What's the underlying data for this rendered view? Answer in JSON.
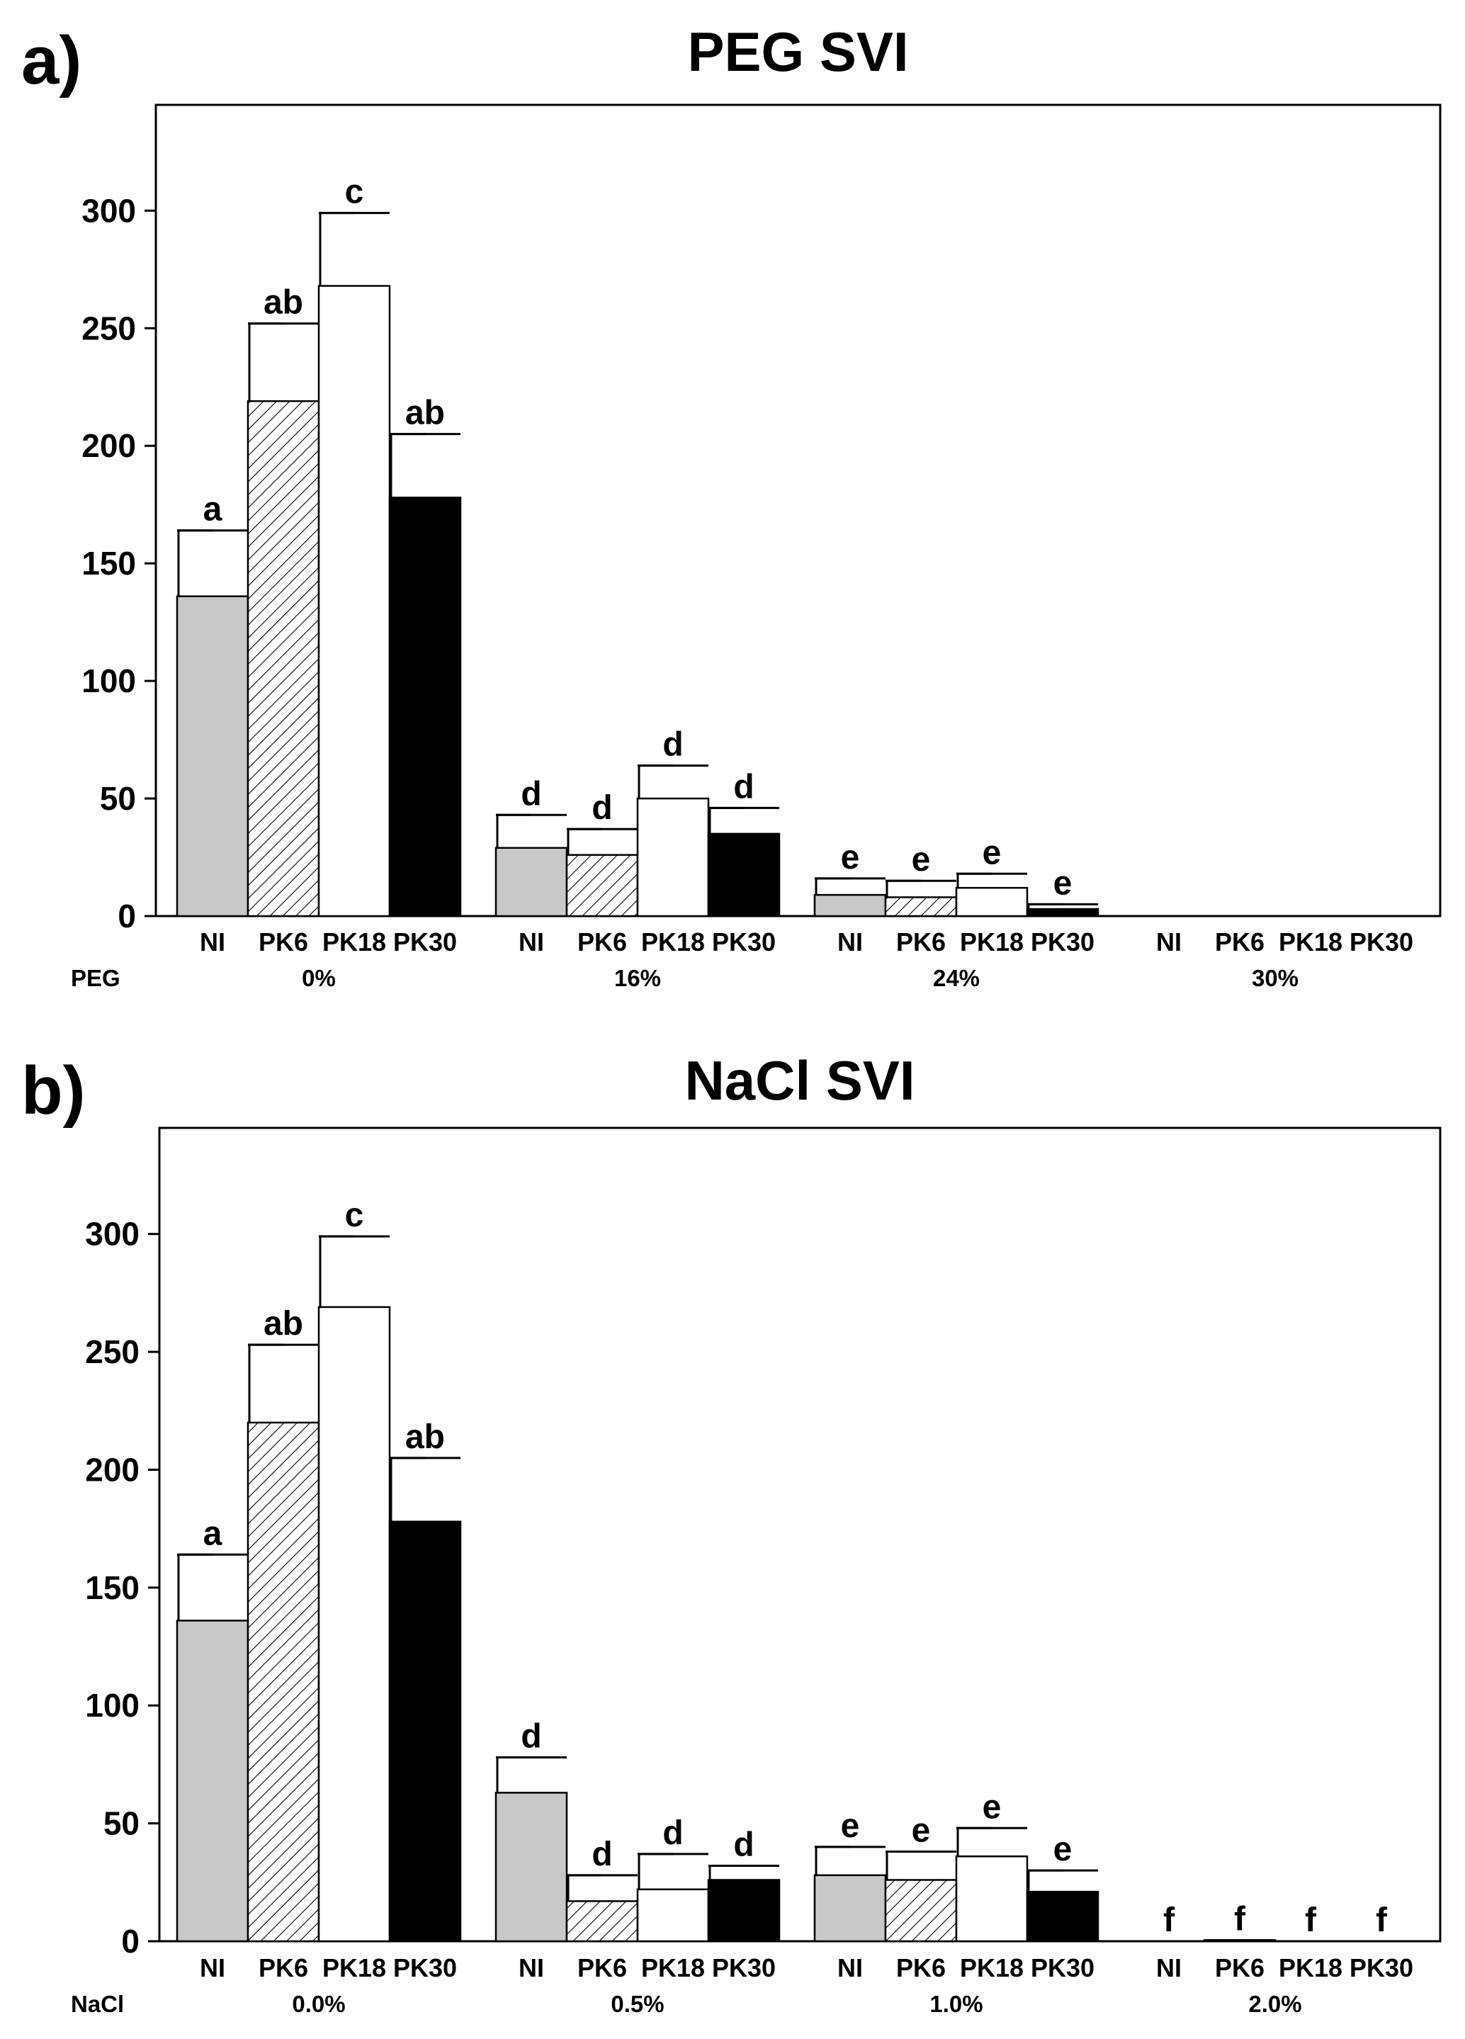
{
  "colors": {
    "NI": "#c8c8c8",
    "PK6": "#ffffff",
    "PK18": "#ffffff",
    "PK30": "#000000",
    "axis": "#000000",
    "background": "#ffffff"
  },
  "series_styles": {
    "NI": "solid",
    "PK6": "hatched",
    "PK18": "open",
    "PK30": "solid"
  },
  "chart_data": [
    {
      "type": "bar",
      "panel_label": "a)",
      "title": "PEG SVI",
      "factor_label": "PEG",
      "ylim": [
        0,
        345
      ],
      "yticks": [
        0,
        50,
        100,
        150,
        200,
        250,
        300
      ],
      "ytick_labels": [
        "0",
        "50",
        "100",
        "150",
        "200",
        "250",
        "300"
      ],
      "series_names": [
        "NI",
        "PK6",
        "PK18",
        "PK30"
      ],
      "groups": [
        {
          "label": "0%",
          "values": [
            136,
            219,
            268,
            178
          ],
          "errors": [
            28,
            33,
            31,
            27
          ],
          "letters": [
            "a",
            "ab",
            "c",
            "ab"
          ]
        },
        {
          "label": "16%",
          "values": [
            29,
            26,
            50,
            35
          ],
          "errors": [
            14,
            11,
            14,
            11
          ],
          "letters": [
            "d",
            "d",
            "d",
            "d"
          ]
        },
        {
          "label": "24%",
          "values": [
            9,
            8,
            12,
            3
          ],
          "errors": [
            7,
            7,
            6,
            2
          ],
          "letters": [
            "e",
            "e",
            "e",
            "e"
          ]
        },
        {
          "label": "30%",
          "values": [
            0,
            0,
            0,
            0
          ],
          "errors": [
            0,
            0,
            0,
            0
          ],
          "letters": [
            "",
            "",
            "",
            ""
          ]
        }
      ]
    },
    {
      "type": "bar",
      "panel_label": "b)",
      "title": "NaCl SVI",
      "factor_label": "NaCl",
      "ylim": [
        0,
        345
      ],
      "yticks": [
        0,
        50,
        100,
        150,
        200,
        250,
        300
      ],
      "ytick_labels": [
        "0",
        "50",
        "100",
        "150",
        "200",
        "250",
        "300"
      ],
      "series_names": [
        "NI",
        "PK6",
        "PK18",
        "PK30"
      ],
      "groups": [
        {
          "label": "0.0%",
          "values": [
            136,
            220,
            269,
            178
          ],
          "errors": [
            28,
            33,
            30,
            27
          ],
          "letters": [
            "a",
            "ab",
            "c",
            "ab"
          ]
        },
        {
          "label": "0.5%",
          "values": [
            63,
            17,
            22,
            26
          ],
          "errors": [
            15,
            11,
            15,
            6
          ],
          "letters": [
            "d",
            "d",
            "d",
            "d"
          ]
        },
        {
          "label": "1.0%",
          "values": [
            28,
            26,
            36,
            21
          ],
          "errors": [
            12,
            12,
            12,
            9
          ],
          "letters": [
            "e",
            "e",
            "e",
            "e"
          ]
        },
        {
          "label": "2.0%",
          "values": [
            0,
            0.5,
            0,
            0
          ],
          "errors": [
            0,
            0,
            0,
            0
          ],
          "letters": [
            "f",
            "f",
            "f",
            "f"
          ]
        }
      ]
    }
  ]
}
